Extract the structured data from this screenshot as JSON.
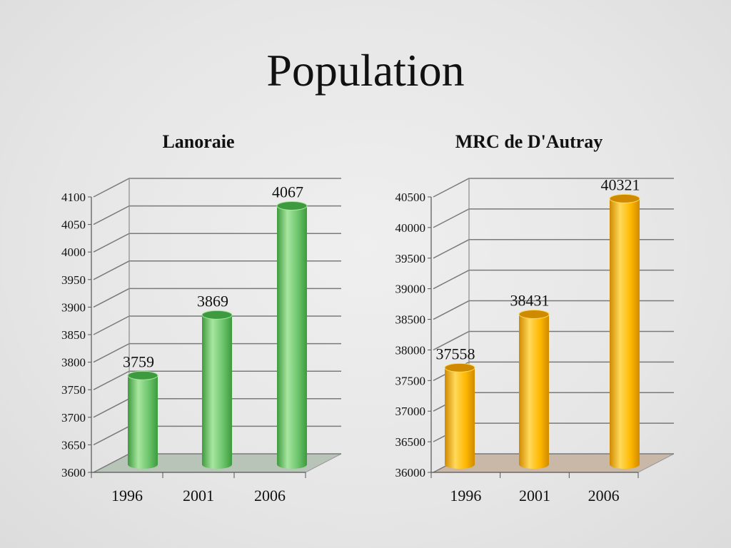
{
  "slide": {
    "title": "Population"
  },
  "chart_data": [
    {
      "type": "bar",
      "title": "Lanoraie",
      "categories": [
        "1996",
        "2001",
        "2006"
      ],
      "values": [
        3759,
        3869,
        4067
      ],
      "data_labels": [
        "3759",
        "3869",
        "4067"
      ],
      "ylim": [
        3600,
        4100
      ],
      "yticks": [
        3600,
        3650,
        3700,
        3750,
        3800,
        3850,
        3900,
        3950,
        4000,
        4050,
        4100
      ],
      "grid": true,
      "legend": "none",
      "colors": {
        "bar": "#6cc56c",
        "bar_dark": "#3e9a3e",
        "bar_light": "#a8e6a0",
        "floor": "#b9c4b9"
      }
    },
    {
      "type": "bar",
      "title": "MRC de D'Autray",
      "categories": [
        "1996",
        "2001",
        "2006"
      ],
      "values": [
        37558,
        38431,
        40321
      ],
      "data_labels": [
        "37558",
        "38431",
        "40321"
      ],
      "ylim": [
        36000,
        40500
      ],
      "yticks": [
        36000,
        36500,
        37000,
        37500,
        38000,
        38500,
        39000,
        39500,
        40000,
        40500
      ],
      "grid": true,
      "legend": "none",
      "colors": {
        "bar": "#ffb800",
        "bar_dark": "#d08a00",
        "bar_light": "#ffd95a",
        "floor": "#c9b8a8"
      }
    }
  ]
}
